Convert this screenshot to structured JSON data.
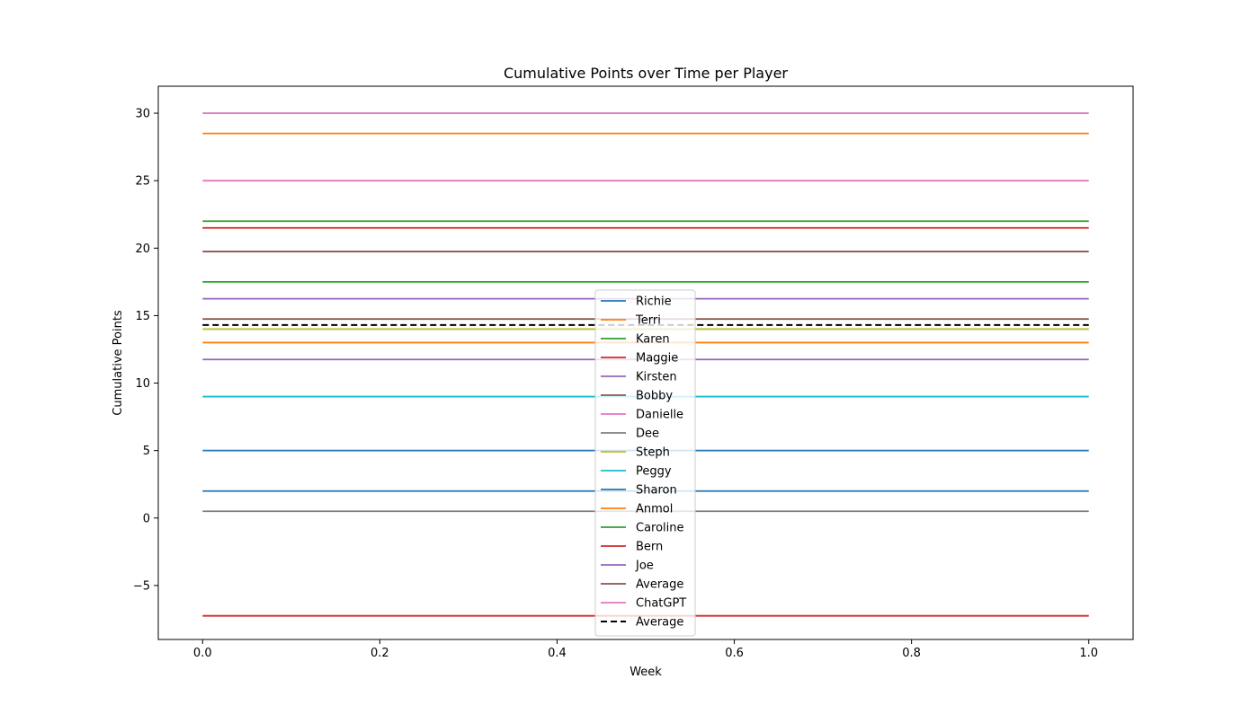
{
  "chart_data": {
    "type": "line",
    "title": "Cumulative Points over Time per Player",
    "xlabel": "Week",
    "ylabel": "Cumulative Points",
    "xlim": [
      -0.05,
      1.05
    ],
    "ylim": [
      -9.0,
      32.0
    ],
    "x": [
      0.0,
      1.0
    ],
    "xticks": [
      0.0,
      0.2,
      0.4,
      0.6,
      0.8,
      1.0
    ],
    "xtick_labels": [
      "0.0",
      "0.2",
      "0.4",
      "0.6",
      "0.8",
      "1.0"
    ],
    "yticks": [
      -5,
      0,
      5,
      10,
      15,
      20,
      25,
      30
    ],
    "ytick_labels": [
      "−5",
      "0",
      "5",
      "10",
      "15",
      "20",
      "25",
      "30"
    ],
    "grid": false,
    "legend_position": "center",
    "series": [
      {
        "name": "Richie",
        "values": [
          5.0,
          5.0
        ],
        "color": "#1f77b4",
        "dash": "solid"
      },
      {
        "name": "Terri",
        "values": [
          28.5,
          28.5
        ],
        "color": "#ff7f0e",
        "dash": "solid"
      },
      {
        "name": "Karen",
        "values": [
          22.0,
          22.0
        ],
        "color": "#2ca02c",
        "dash": "solid"
      },
      {
        "name": "Maggie",
        "values": [
          21.5,
          21.5
        ],
        "color": "#d62728",
        "dash": "solid"
      },
      {
        "name": "Kirsten",
        "values": [
          16.25,
          16.25
        ],
        "color": "#9467bd",
        "dash": "solid"
      },
      {
        "name": "Bobby",
        "values": [
          19.75,
          19.75
        ],
        "color": "#8c564b",
        "dash": "solid"
      },
      {
        "name": "Danielle",
        "values": [
          25.0,
          25.0
        ],
        "color": "#e377c2",
        "dash": "solid"
      },
      {
        "name": "Dee",
        "values": [
          0.5,
          0.5
        ],
        "color": "#7f7f7f",
        "dash": "solid"
      },
      {
        "name": "Steph",
        "values": [
          14.0,
          14.0
        ],
        "color": "#bcbd22",
        "dash": "solid"
      },
      {
        "name": "Peggy",
        "values": [
          9.0,
          9.0
        ],
        "color": "#17becf",
        "dash": "solid"
      },
      {
        "name": "Sharon",
        "values": [
          2.0,
          2.0
        ],
        "color": "#1f77b4",
        "dash": "solid"
      },
      {
        "name": "Anmol",
        "values": [
          13.0,
          13.0
        ],
        "color": "#ff7f0e",
        "dash": "solid"
      },
      {
        "name": "Caroline",
        "values": [
          17.5,
          17.5
        ],
        "color": "#2ca02c",
        "dash": "solid"
      },
      {
        "name": "Bern",
        "values": [
          -7.25,
          -7.25
        ],
        "color": "#d62728",
        "dash": "solid"
      },
      {
        "name": "Joe",
        "values": [
          11.75,
          11.75
        ],
        "color": "#9467bd",
        "dash": "solid"
      },
      {
        "name": "Average",
        "values": [
          14.75,
          14.75
        ],
        "color": "#8c564b",
        "dash": "solid"
      },
      {
        "name": "ChatGPT",
        "values": [
          30.0,
          30.0
        ],
        "color": "#e377c2",
        "dash": "solid"
      },
      {
        "name": "Average",
        "values": [
          14.3,
          14.3
        ],
        "color": "#000000",
        "dash": "dashed"
      }
    ]
  }
}
